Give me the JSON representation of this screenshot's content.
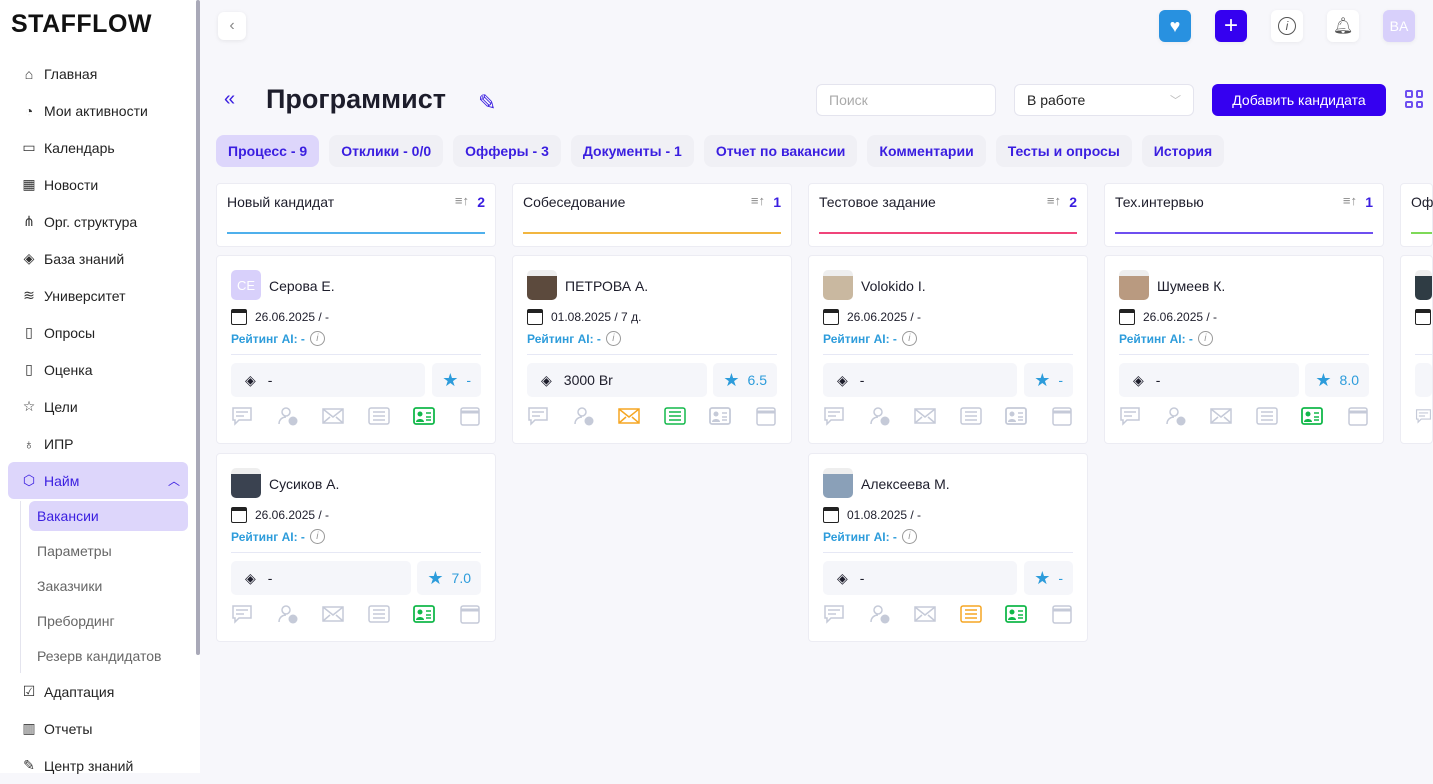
{
  "app": {
    "logo": "STAFFLOW"
  },
  "sidebar": {
    "items": [
      {
        "label": "Главная",
        "icon": "⌂"
      },
      {
        "label": "Мои активности",
        "icon": "◔"
      },
      {
        "label": "Календарь",
        "icon": "▭"
      },
      {
        "label": "Новости",
        "icon": "▦"
      },
      {
        "label": "Орг. структура",
        "icon": "⋔"
      },
      {
        "label": "База знаний",
        "icon": "◈"
      },
      {
        "label": "Университет",
        "icon": "≋"
      },
      {
        "label": "Опросы",
        "icon": "▯"
      },
      {
        "label": "Оценка",
        "icon": "▯"
      },
      {
        "label": "Цели",
        "icon": "☆"
      },
      {
        "label": "ИПР",
        "icon": "♁"
      },
      {
        "label": "Найм",
        "icon": "⬡",
        "active": true
      }
    ],
    "sub": [
      "Вакансии",
      "Параметры",
      "Заказчики",
      "Пребординг",
      "Резерв кандидатов"
    ],
    "after": [
      {
        "label": "Адаптация",
        "icon": "☑"
      },
      {
        "label": "Отчеты",
        "icon": "▥"
      },
      {
        "label": "Центр знаний",
        "icon": "✎"
      }
    ]
  },
  "topbar": {
    "avatar": "BA"
  },
  "header": {
    "title": "Программист",
    "search_placeholder": "Поиск",
    "status": "В работе",
    "add_button": "Добавить кандидата"
  },
  "tabs": [
    {
      "label": "Процесс - 9",
      "active": true
    },
    {
      "label": "Отклики - 0/0"
    },
    {
      "label": "Офферы - 3"
    },
    {
      "label": "Документы - 1"
    },
    {
      "label": "Отчет по вакансии"
    },
    {
      "label": "Комментарии"
    },
    {
      "label": "Тесты и опросы"
    },
    {
      "label": "История"
    }
  ],
  "rating_label": "Рейтинг AI: -",
  "columns": [
    {
      "name": "Новый кандидат",
      "count": "2",
      "color": "#4fb0ec",
      "cards": [
        {
          "name": "Серова Е.",
          "initials": "CE",
          "date": "26.06.2025 / -",
          "salary": "-",
          "score": "-",
          "icons": [
            "grey",
            "grey",
            "grey",
            "grey",
            "green",
            "grey"
          ]
        },
        {
          "name": "Сусиков А.",
          "photo": true,
          "date": "26.06.2025 / -",
          "salary": "-",
          "score": "7.0",
          "icons": [
            "grey",
            "grey",
            "grey",
            "grey",
            "green",
            "grey"
          ]
        }
      ]
    },
    {
      "name": "Собеседование",
      "count": "1",
      "color": "#f2b640",
      "cards": [
        {
          "name": "ПЕТРОВА А.",
          "photo": true,
          "date": "01.08.2025 / 7 д.",
          "salary": "3000 Br",
          "score": "6.5",
          "icons": [
            "grey",
            "grey",
            "orange",
            "green",
            "grey",
            "grey"
          ]
        }
      ]
    },
    {
      "name": "Тестовое задание",
      "count": "2",
      "color": "#f0447a",
      "cards": [
        {
          "name": "Volokido I.",
          "photo": true,
          "date": "26.06.2025 / -",
          "salary": "-",
          "score": "-",
          "icons": [
            "grey",
            "grey",
            "grey",
            "grey",
            "grey",
            "grey"
          ]
        },
        {
          "name": "Алексеева М.",
          "photo": true,
          "date": "01.08.2025 / -",
          "salary": "-",
          "score": "-",
          "icons": [
            "grey",
            "grey",
            "grey",
            "orange",
            "green",
            "grey"
          ]
        }
      ]
    },
    {
      "name": "Тех.интервью",
      "count": "1",
      "color": "#6e4ff0",
      "cards": [
        {
          "name": "Шумеев К.",
          "photo": true,
          "date": "26.06.2025 / -",
          "salary": "-",
          "score": "8.0",
          "icons": [
            "grey",
            "grey",
            "grey",
            "grey",
            "green",
            "grey"
          ]
        }
      ]
    },
    {
      "name": "Оф",
      "count": "",
      "color": "#7ed957",
      "cards": [
        {
          "name": "",
          "photo": true,
          "date": "",
          "salary": "",
          "score": "",
          "icons": [
            "grey"
          ]
        }
      ]
    }
  ],
  "colors": {
    "accent": "#3500f0",
    "grey_icon": "#c5cad8",
    "green": "#12b84a",
    "orange": "#f5a623",
    "heart": "#2891e0"
  }
}
